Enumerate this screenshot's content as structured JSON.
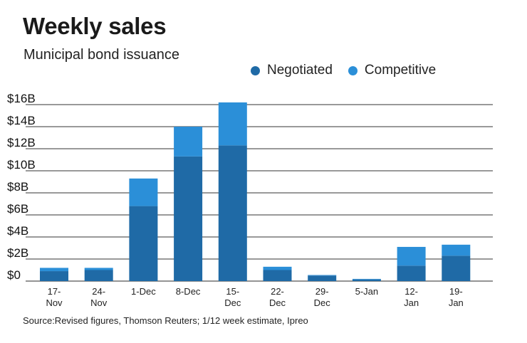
{
  "header": {
    "title": "Weekly sales",
    "subtitle": "Municipal bond issuance"
  },
  "legend": [
    {
      "label": "Negotiated",
      "color": "#1f6aa6"
    },
    {
      "label": "Competitive",
      "color": "#2b8fd8"
    }
  ],
  "source": "Source:Revised figures, Thomson Reuters; 1/12 week estimate, Ipreo",
  "chart_data": {
    "type": "bar",
    "stacked": true,
    "title": "Weekly sales",
    "subtitle": "Municipal bond issuance",
    "xlabel": "",
    "ylabel": "",
    "ylim": [
      0,
      16
    ],
    "yticks": [
      0,
      2,
      4,
      6,
      8,
      10,
      12,
      14,
      16
    ],
    "ytick_labels": [
      "$0",
      "$2B",
      "$4B",
      "$6B",
      "$8B",
      "$10B",
      "$12B",
      "$14B",
      "$16B"
    ],
    "categories": [
      [
        "17-",
        "Nov"
      ],
      [
        "24-",
        "Nov"
      ],
      [
        "1-Dec"
      ],
      [
        "8-Dec"
      ],
      [
        "15-",
        "Dec"
      ],
      [
        "22-",
        "Dec"
      ],
      [
        "29-",
        "Dec"
      ],
      [
        "5-Jan"
      ],
      [
        "12-",
        "Jan"
      ],
      [
        "19-",
        "Jan"
      ]
    ],
    "series": [
      {
        "name": "Negotiated",
        "color": "#1f6aa6",
        "values": [
          0.9,
          1.0,
          6.8,
          11.3,
          12.3,
          1.0,
          0.5,
          0.15,
          1.4,
          2.3
        ]
      },
      {
        "name": "Competitive",
        "color": "#2b8fd8",
        "values": [
          0.3,
          0.2,
          2.5,
          2.7,
          3.9,
          0.3,
          0.05,
          0.05,
          1.7,
          1.0
        ]
      }
    ]
  }
}
